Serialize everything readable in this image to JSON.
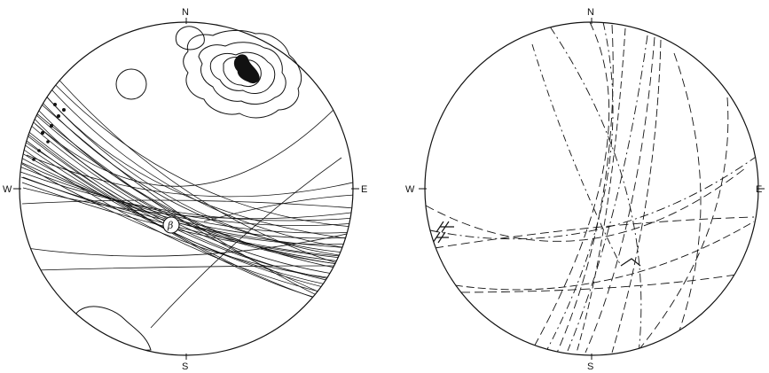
{
  "stereonet_left": {
    "north": "N",
    "south": "S",
    "east": "E",
    "west": "W",
    "beta_label": "β"
  },
  "stereonet_right": {
    "north": "N",
    "south": "S",
    "east": "E",
    "west": "W"
  },
  "ink_color": "#111111"
}
